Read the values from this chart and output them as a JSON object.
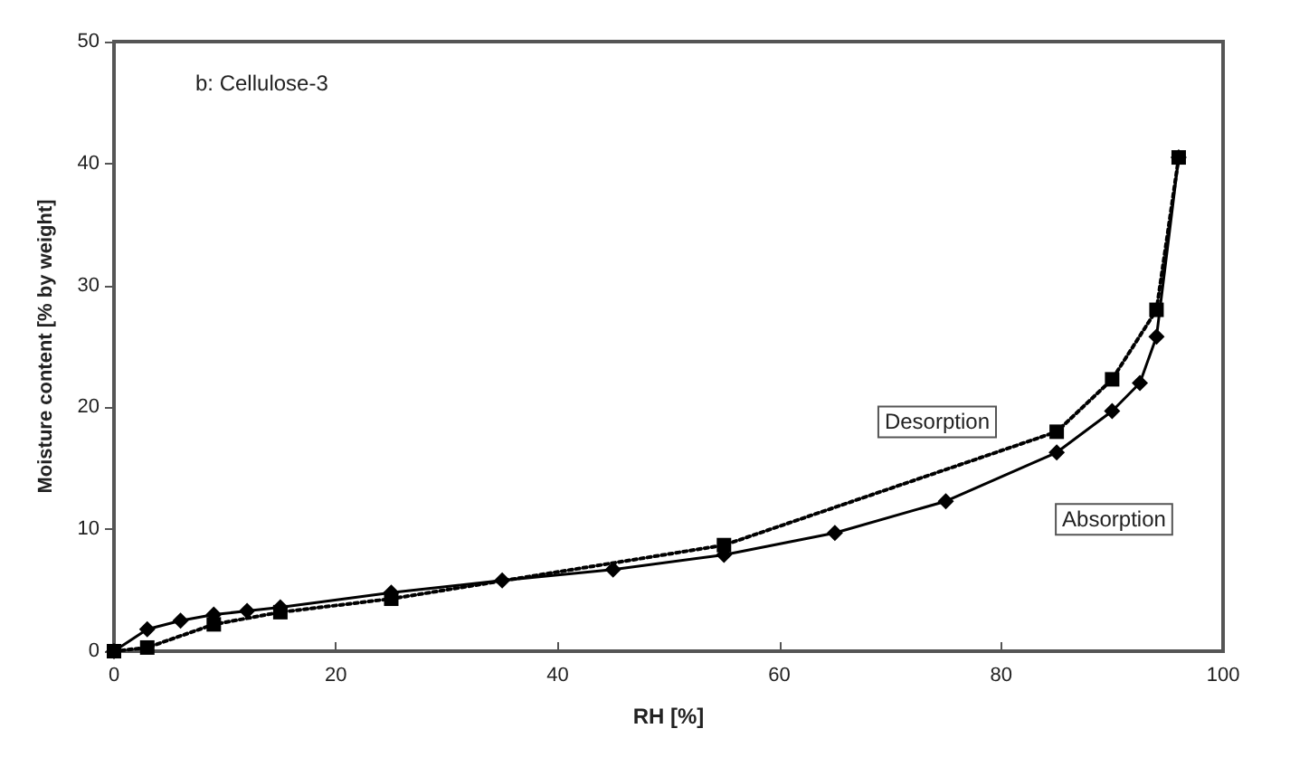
{
  "chart_data": {
    "type": "line",
    "title": "b: Cellulose-3",
    "xlabel": "RH [%]",
    "ylabel": "Moisture content [% by weight]",
    "xlim": [
      0,
      100
    ],
    "xticks": [
      0,
      20,
      40,
      60,
      80,
      100
    ],
    "ylim": [
      0,
      50
    ],
    "yticks": [
      0,
      10,
      20,
      30,
      40,
      50
    ],
    "grid": false,
    "legend": false,
    "series": [
      {
        "name": "Absorption",
        "color": "#000000",
        "marker": "diamond",
        "line_style": "solid",
        "x": [
          0,
          3,
          6,
          9,
          12,
          15,
          25,
          35,
          45,
          55,
          65,
          75,
          85,
          90,
          92.5,
          94,
          96
        ],
        "values": [
          0,
          1.8,
          2.5,
          3,
          3.3,
          3.6,
          4.8,
          5.8,
          6.7,
          7.9,
          9.7,
          12.3,
          16.3,
          19.7,
          22,
          25.8,
          40.5
        ]
      },
      {
        "name": "Desorption",
        "color": "#000000",
        "marker": "square",
        "line_style": "dotted",
        "x": [
          0,
          3,
          9,
          15,
          25,
          55,
          85,
          90,
          94,
          96
        ],
        "values": [
          0,
          0.3,
          2.2,
          3.2,
          4.3,
          8.7,
          18,
          22.3,
          28,
          40.5
        ]
      }
    ]
  }
}
